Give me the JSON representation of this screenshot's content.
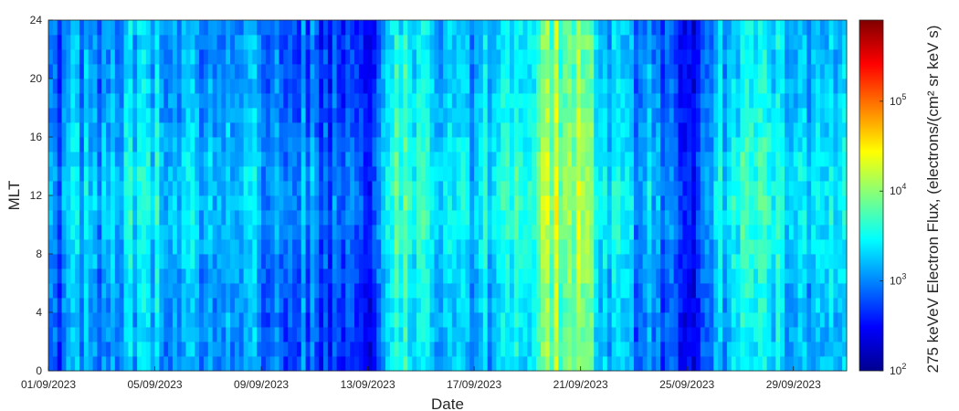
{
  "chart_data": {
    "type": "heatmap",
    "title": "",
    "xlabel": "Date",
    "ylabel": "MLT",
    "colorbar_label": "275 keVeV Electron Flux, (electrons/(cm² sr keV s)",
    "colormap": "jet",
    "colorbar_scale": "log",
    "colorbar_range": [
      100,
      800000
    ],
    "colorbar_ticks": [
      {
        "value": 100,
        "base": "10",
        "exp": "2"
      },
      {
        "value": 1000,
        "base": "10",
        "exp": "3"
      },
      {
        "value": 10000,
        "base": "10",
        "exp": "4"
      },
      {
        "value": 100000,
        "base": "10",
        "exp": "5"
      }
    ],
    "x_range_days": [
      "01/09/2023",
      "01/10/2023"
    ],
    "x_ticks": [
      "01/09/2023",
      "05/09/2023",
      "09/09/2023",
      "13/09/2023",
      "17/09/2023",
      "21/09/2023",
      "25/09/2023",
      "29/09/2023"
    ],
    "ylim": [
      0,
      24
    ],
    "y_ticks": [
      0,
      4,
      8,
      12,
      16,
      20,
      24
    ],
    "mlt_bin_hours": 1,
    "grid": false,
    "daily_log10_flux_profile": {
      "dates": [
        "01/09/2023",
        "02/09/2023",
        "03/09/2023",
        "04/09/2023",
        "05/09/2023",
        "06/09/2023",
        "07/09/2023",
        "08/09/2023",
        "09/09/2023",
        "10/09/2023",
        "11/09/2023",
        "12/09/2023",
        "13/09/2023",
        "14/09/2023",
        "15/09/2023",
        "16/09/2023",
        "17/09/2023",
        "18/09/2023",
        "19/09/2023",
        "20/09/2023",
        "21/09/2023",
        "22/09/2023",
        "23/09/2023",
        "24/09/2023",
        "25/09/2023",
        "26/09/2023",
        "27/09/2023",
        "28/09/2023",
        "29/09/2023",
        "30/09/2023"
      ],
      "values": [
        2.8,
        3.0,
        2.9,
        3.2,
        3.2,
        3.1,
        3.0,
        3.0,
        3.0,
        2.9,
        2.8,
        2.7,
        2.3,
        3.6,
        3.3,
        3.2,
        3.1,
        3.2,
        3.6,
        3.9,
        3.8,
        3.2,
        3.0,
        2.9,
        2.4,
        3.1,
        3.5,
        3.4,
        3.3,
        3.1
      ]
    }
  }
}
